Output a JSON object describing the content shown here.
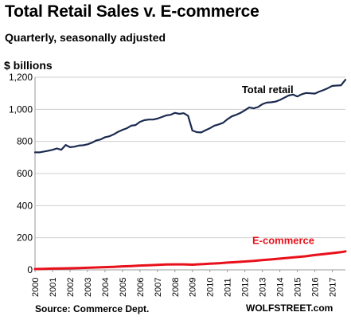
{
  "chart_data": {
    "type": "line",
    "title": "Total Retail Sales v. E-commerce",
    "subtitle": "Quarterly, seasonally adjusted",
    "ylabel": "$ billions",
    "xlabel": "",
    "ylim": [
      0,
      1200
    ],
    "yticks": [
      0,
      200,
      400,
      600,
      800,
      1000,
      1200
    ],
    "ytick_labels": [
      "0",
      "200",
      "400",
      "600",
      "800",
      "1,000",
      "1,200"
    ],
    "xlim": [
      2000,
      2017.75
    ],
    "xticks": [
      "2000",
      "2001",
      "2002",
      "2003",
      "2004",
      "2005",
      "2006",
      "2007",
      "2008",
      "2009",
      "2010",
      "2011",
      "2012",
      "2013",
      "2014",
      "2015",
      "2016",
      "2017"
    ],
    "grid": true,
    "annotations": [
      {
        "text": "Total retail",
        "color": "#000000",
        "at_year": 2013.3,
        "at_value": 1100
      },
      {
        "text": "E-commerce",
        "color": "#e8111b",
        "at_year": 2014.2,
        "at_value": 160
      }
    ],
    "series": [
      {
        "name": "Total retail",
        "color": "#1a2a4f",
        "x": [
          2000,
          2000.25,
          2000.5,
          2000.75,
          2001,
          2001.25,
          2001.5,
          2001.75,
          2002,
          2002.25,
          2002.5,
          2002.75,
          2003,
          2003.25,
          2003.5,
          2003.75,
          2004,
          2004.25,
          2004.5,
          2004.75,
          2005,
          2005.25,
          2005.5,
          2005.75,
          2006,
          2006.25,
          2006.5,
          2006.75,
          2007,
          2007.25,
          2007.5,
          2007.75,
          2008,
          2008.25,
          2008.5,
          2008.75,
          2009,
          2009.25,
          2009.5,
          2009.75,
          2010,
          2010.25,
          2010.5,
          2010.75,
          2011,
          2011.25,
          2011.5,
          2011.75,
          2012,
          2012.25,
          2012.5,
          2012.75,
          2013,
          2013.25,
          2013.5,
          2013.75,
          2014,
          2014.25,
          2014.5,
          2014.75,
          2015,
          2015.25,
          2015.5,
          2015.75,
          2016,
          2016.25,
          2016.5,
          2016.75,
          2017,
          2017.25,
          2017.5,
          2017.75
        ],
        "values": [
          732,
          732,
          737,
          742,
          748,
          756,
          748,
          778,
          764,
          767,
          774,
          776,
          782,
          792,
          806,
          812,
          826,
          832,
          844,
          860,
          872,
          882,
          898,
          902,
          922,
          932,
          936,
          936,
          942,
          952,
          962,
          966,
          978,
          972,
          976,
          960,
          868,
          858,
          856,
          870,
          882,
          898,
          906,
          916,
          938,
          956,
          966,
          978,
          994,
          1012,
          1006,
          1014,
          1032,
          1042,
          1044,
          1048,
          1058,
          1072,
          1086,
          1092,
          1080,
          1094,
          1102,
          1100,
          1098,
          1110,
          1120,
          1132,
          1146,
          1148,
          1150,
          1184
        ]
      },
      {
        "name": "E-commerce",
        "color": "#e8111b",
        "x": [
          2000,
          2000.5,
          2001,
          2001.5,
          2002,
          2002.5,
          2003,
          2003.5,
          2004,
          2004.5,
          2005,
          2005.5,
          2006,
          2006.5,
          2007,
          2007.5,
          2008,
          2008.5,
          2009,
          2009.5,
          2010,
          2010.5,
          2011,
          2011.5,
          2012,
          2012.5,
          2013,
          2013.5,
          2014,
          2014.5,
          2015,
          2015.5,
          2016,
          2016.5,
          2017,
          2017.5,
          2017.75
        ],
        "values": [
          5,
          6,
          8,
          9,
          10,
          11,
          13,
          15,
          17,
          19,
          22,
          24,
          27,
          29,
          31,
          33,
          34,
          34,
          32,
          35,
          38,
          41,
          45,
          48,
          52,
          56,
          61,
          65,
          70,
          75,
          80,
          85,
          92,
          98,
          104,
          110,
          115
        ]
      }
    ]
  },
  "footer": {
    "source": "Source: Commerce Dept.",
    "credit": "WOLFSTREET.com"
  }
}
